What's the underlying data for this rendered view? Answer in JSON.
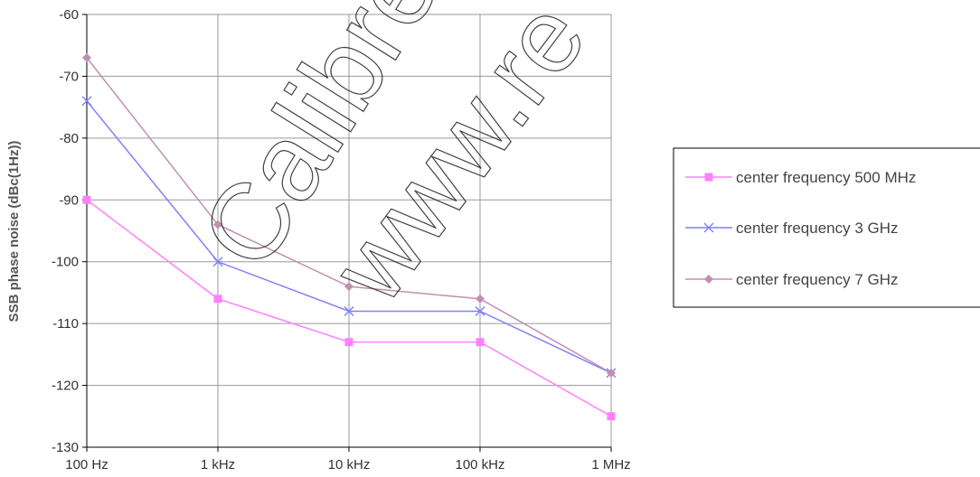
{
  "chart_data": {
    "type": "line",
    "categories": [
      "100 Hz",
      "1 kHz",
      "10 kHz",
      "100 kHz",
      "1 MHz"
    ],
    "ylabel": "SSB phase noise (dBc(1Hz))",
    "xlabel": "",
    "ylim": [
      -130,
      -60
    ],
    "yticks": [
      -60,
      -70,
      -80,
      -90,
      -100,
      -110,
      -120,
      -130
    ],
    "grid": true,
    "legend_position": "right",
    "series": [
      {
        "name": "center frequency 500 MHz",
        "values": [
          -90,
          -106,
          -113,
          -113,
          -125
        ],
        "color": "#ff80ff",
        "marker": "square"
      },
      {
        "name": "center frequency 3 GHz",
        "values": [
          -74,
          -100,
          -108,
          -108,
          -118
        ],
        "color": "#8080ff",
        "marker": "x"
      },
      {
        "name": "center frequency 7 GHz",
        "values": [
          -67,
          -94,
          -104,
          -106,
          -118
        ],
        "color": "#c090b0",
        "marker": "diamond"
      }
    ]
  },
  "watermark": {
    "text_1": "Calibre",
    "text_2": "www.re"
  }
}
